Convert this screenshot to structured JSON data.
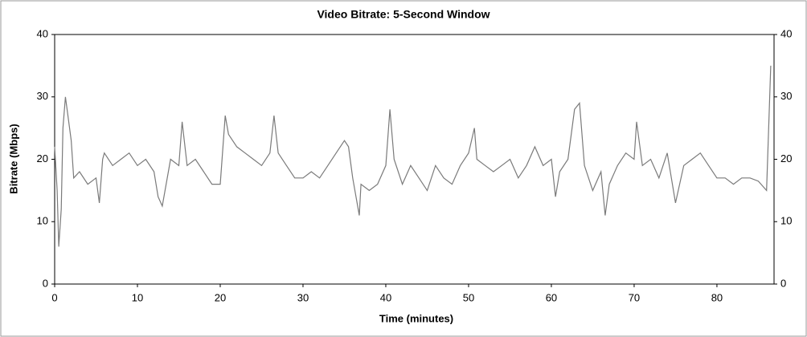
{
  "chart_data": {
    "type": "line",
    "title": "Video Bitrate: 5-Second Window",
    "x_label": "Time (minutes)",
    "y_label": "Bitrate (Mbps)",
    "x": [
      0,
      0.3,
      0.5,
      0.8,
      1,
      1.3,
      1.6,
      2,
      2.3,
      3,
      4,
      5,
      5.4,
      5.8,
      6,
      7,
      8,
      9,
      10,
      11,
      12,
      12.5,
      13,
      14,
      15,
      15.4,
      16,
      17,
      18,
      19,
      20,
      20.6,
      21,
      22,
      23,
      24,
      25,
      26,
      26.5,
      27,
      28,
      29,
      30,
      31,
      32,
      33,
      34,
      35,
      35.5,
      36,
      36.8,
      37,
      38,
      39,
      40,
      40.5,
      41,
      42,
      43,
      44,
      45,
      46,
      47,
      48,
      49,
      50,
      50.7,
      51,
      52,
      53,
      54,
      55,
      56,
      57,
      58,
      59,
      60,
      60.5,
      61,
      62,
      62.8,
      63.4,
      64,
      65,
      66,
      66.5,
      67,
      68,
      69,
      70,
      70.3,
      71,
      72,
      73,
      74,
      75,
      76,
      77,
      78,
      79,
      80,
      81,
      82,
      83,
      84,
      85,
      86,
      86.5
    ],
    "series": [
      {
        "name": "Video Bitrate",
        "color": "#7a7a7a",
        "values": [
          22,
          15,
          6,
          12,
          25,
          30,
          27,
          23,
          17,
          18,
          16,
          17,
          13,
          20,
          21,
          19,
          20,
          21,
          19,
          20,
          18,
          14,
          12.5,
          20,
          19,
          26,
          19,
          20,
          18,
          16,
          16,
          27,
          24,
          22,
          21,
          20,
          19,
          21,
          27,
          21,
          19,
          17,
          17,
          18,
          17,
          19,
          21,
          23,
          22,
          17,
          11,
          16,
          15,
          16,
          19,
          28,
          20,
          16,
          19,
          17,
          15,
          19,
          17,
          16,
          19,
          21,
          25,
          20,
          19,
          18,
          19,
          20,
          17,
          19,
          22,
          19,
          20,
          14,
          18,
          20,
          28,
          29,
          19,
          15,
          18,
          11,
          16,
          19,
          21,
          20,
          26,
          19,
          20,
          17,
          21,
          13,
          19,
          20,
          21,
          19,
          17,
          17,
          16,
          17,
          17,
          16.5,
          15,
          35
        ]
      }
    ],
    "xlim": [
      0,
      86.9
    ],
    "ylim": [
      0,
      40
    ],
    "y2lim": [
      0,
      40
    ],
    "xticks": [
      0,
      10,
      20,
      30,
      40,
      50,
      60,
      70,
      80
    ],
    "yticks": [
      0,
      10,
      20,
      30,
      40
    ],
    "y2ticks": [
      0,
      10,
      20,
      30,
      40
    ]
  }
}
